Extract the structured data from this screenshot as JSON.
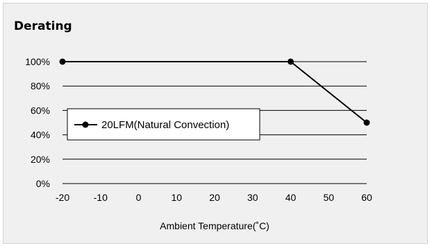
{
  "title": "Derating",
  "chart_data": {
    "type": "line",
    "title": "Derating",
    "xlabel": "Ambient Temperature(˚C)",
    "ylabel": "",
    "xlim": [
      -20,
      60
    ],
    "ylim": [
      0,
      100
    ],
    "x_ticks": [
      -20,
      -10,
      0,
      10,
      20,
      30,
      40,
      50,
      60
    ],
    "x_tick_labels": [
      "-20",
      "-10",
      "0",
      "10",
      "20",
      "30",
      "40",
      "50",
      "60"
    ],
    "y_ticks": [
      0,
      20,
      40,
      60,
      80,
      100
    ],
    "y_tick_labels": [
      "0%",
      "20%",
      "40%",
      "60%",
      "80%",
      "100%"
    ],
    "grid": "horizontal",
    "legend_position": "center-left",
    "series": [
      {
        "name": "20LFM(Natural Convection)",
        "color": "#000000",
        "marker": "circle",
        "x": [
          -20,
          40,
          60
        ],
        "y": [
          100,
          100,
          50
        ]
      }
    ]
  }
}
